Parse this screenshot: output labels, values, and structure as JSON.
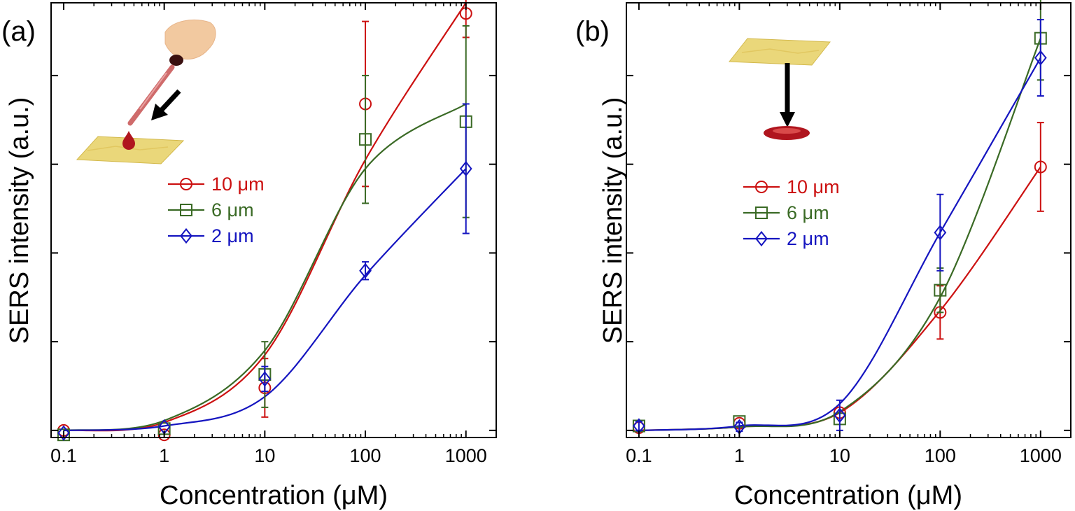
{
  "chart_data": [
    {
      "type": "scatter",
      "panel_label": "(a)",
      "xlabel": "Concentration (μM)",
      "ylabel": "SERS intensity (a.u.)",
      "x_scale": "log",
      "xlim": [
        0.075,
        2000
      ],
      "ylim": [
        -0.08,
        4.82
      ],
      "x_ticks": [
        0.1,
        1,
        10,
        100,
        1000
      ],
      "x_tick_labels": [
        "0.1",
        "1",
        "10",
        "100",
        "1000"
      ],
      "y_ticks": [
        0,
        1,
        2,
        3,
        4
      ],
      "y_tick_labels_shown": false,
      "legend_position": "upper-left",
      "inset": "pipette dropping a droplet onto the substrate",
      "series": [
        {
          "name": "10 μm",
          "color": "#cc1111",
          "marker": "circle",
          "x": [
            0.1,
            1,
            10,
            100,
            1000
          ],
          "values": [
            0.0,
            -0.05,
            0.48,
            3.68,
            4.7
          ],
          "errors": [
            0.0,
            0.0,
            0.33,
            0.93,
            0.27
          ],
          "fit": [
            0.0,
            0.09,
            0.85,
            3.05,
            4.82
          ]
        },
        {
          "name": "6 μm",
          "color": "#3a6a25",
          "marker": "square",
          "x": [
            0.1,
            1,
            10,
            100,
            1000
          ],
          "values": [
            -0.05,
            0.02,
            0.63,
            3.28,
            3.48
          ],
          "errors": [
            0.0,
            0.0,
            0.37,
            0.72,
            1.08
          ],
          "fit": [
            0.0,
            0.11,
            0.9,
            2.95,
            3.68
          ]
        },
        {
          "name": "2 μm",
          "color": "#1515c0",
          "marker": "diamond",
          "x": [
            0.1,
            1,
            10,
            100,
            1000
          ],
          "values": [
            -0.03,
            0.04,
            0.58,
            1.8,
            2.95
          ],
          "errors": [
            0.0,
            0.0,
            0.14,
            0.1,
            0.73
          ],
          "fit": [
            0.0,
            0.05,
            0.38,
            1.75,
            2.95
          ]
        }
      ]
    },
    {
      "type": "scatter",
      "panel_label": "(b)",
      "xlabel": "Concentration (μM)",
      "ylabel": "SERS intensity (a.u.)",
      "x_scale": "log",
      "xlim": [
        0.075,
        2000
      ],
      "ylim": [
        -0.08,
        4.82
      ],
      "x_ticks": [
        0.1,
        1,
        10,
        100,
        1000
      ],
      "x_tick_labels": [
        "0.1",
        "1",
        "10",
        "100",
        "1000"
      ],
      "y_ticks": [
        0,
        1,
        2,
        3,
        4
      ],
      "y_tick_labels_shown": false,
      "legend_position": "upper-left",
      "inset": "substrate held above a red droplet",
      "series": [
        {
          "name": "10 μm",
          "color": "#cc1111",
          "marker": "circle",
          "x": [
            0.1,
            1,
            10,
            100,
            1000
          ],
          "values": [
            0.03,
            0.08,
            0.2,
            1.33,
            2.97
          ],
          "errors": [
            0.0,
            0.0,
            0.0,
            0.3,
            0.5
          ],
          "fit": [
            0.0,
            0.04,
            0.2,
            1.35,
            2.97
          ]
        },
        {
          "name": "6 μm",
          "color": "#3a6a25",
          "marker": "square",
          "x": [
            0.1,
            1,
            10,
            100,
            1000
          ],
          "values": [
            0.05,
            0.1,
            0.13,
            1.58,
            4.42
          ],
          "errors": [
            0.0,
            0.0,
            0.0,
            0.25,
            0.47
          ],
          "fit": [
            0.0,
            0.04,
            0.21,
            1.5,
            4.42
          ]
        },
        {
          "name": "2 μm",
          "color": "#1515c0",
          "marker": "diamond",
          "x": [
            0.1,
            1,
            10,
            100,
            1000
          ],
          "values": [
            0.05,
            0.04,
            0.17,
            2.23,
            4.2
          ],
          "errors": [
            0.05,
            0.05,
            0.17,
            0.43,
            0.43
          ],
          "fit": [
            0.0,
            0.05,
            0.3,
            2.23,
            4.2
          ]
        }
      ]
    }
  ]
}
